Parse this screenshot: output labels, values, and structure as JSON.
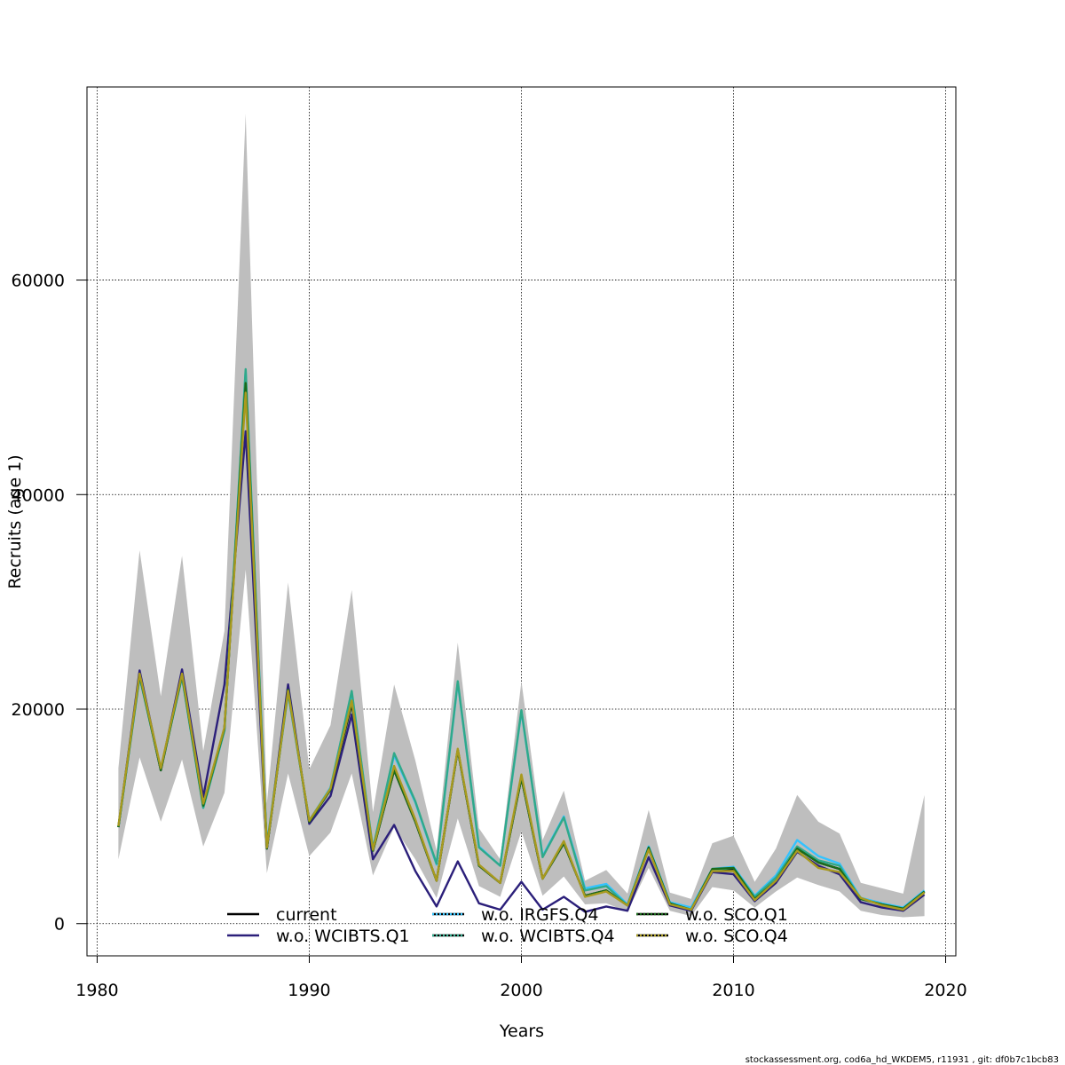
{
  "chart_data": {
    "type": "line",
    "xlabel": "Years",
    "ylabel": "Recruits (age 1)",
    "xlim": [
      1980,
      2020
    ],
    "ylim": [
      -6000,
      78000
    ],
    "xticks": [
      "1980",
      "1990",
      "2000",
      "2010",
      "2020"
    ],
    "yticks": [
      "0",
      "20000",
      "40000",
      "60000"
    ],
    "grid": true,
    "legend_position": "bottom-center",
    "footer": "stockassessment.org, cod6a_hd_WKDEM5, r11931 , git: df0b7c1bcb83",
    "x": [
      1981,
      1982,
      1983,
      1984,
      1985,
      1986,
      1987,
      1988,
      1989,
      1990,
      1991,
      1992,
      1993,
      1994,
      1995,
      1996,
      1997,
      1998,
      1999,
      2000,
      2001,
      2002,
      2003,
      2004,
      2005,
      2006,
      2007,
      2008,
      2009,
      2010,
      2011,
      2012,
      2013,
      2014,
      2015,
      2016,
      2017,
      2018,
      2019
    ],
    "band": {
      "color": "#bebebe",
      "lower": [
        6000,
        15500,
        9500,
        15300,
        7200,
        12200,
        33000,
        4700,
        14000,
        6300,
        8500,
        14000,
        4500,
        9000,
        6000,
        2400,
        9800,
        3500,
        2500,
        8600,
        2600,
        4400,
        1800,
        1900,
        1100,
        5200,
        1200,
        700,
        3400,
        3100,
        1500,
        3000,
        4300,
        3600,
        3000,
        1200,
        800,
        600,
        700
      ],
      "upper": [
        14500,
        34800,
        21200,
        34300,
        16100,
        27300,
        75500,
        11200,
        31800,
        14400,
        18500,
        31100,
        10400,
        22300,
        15200,
        6800,
        26200,
        8900,
        6000,
        22600,
        7800,
        12400,
        4000,
        5000,
        2800,
        10600,
        2900,
        2300,
        7500,
        8200,
        3900,
        7000,
        12000,
        9500,
        8400,
        3800,
        3300,
        2800,
        12000
      ]
    },
    "series": [
      {
        "name": "current",
        "color": "#000000",
        "dash": "solid",
        "values": [
          9000,
          23200,
          14300,
          23200,
          11000,
          18200,
          50200,
          7000,
          21800,
          9500,
          12500,
          20500,
          6800,
          14300,
          9500,
          4000,
          16200,
          5400,
          3800,
          13600,
          4200,
          7500,
          2600,
          3100,
          1700,
          7100,
          1900,
          1300,
          5000,
          5100,
          2300,
          4000,
          7000,
          5700,
          5100,
          2300,
          1800,
          1400,
          3000
        ]
      },
      {
        "name": "w.o. WCIBTS.Q1",
        "color": "#2b1f7a",
        "dash": "solid",
        "values": [
          9000,
          23600,
          14300,
          23700,
          11800,
          22300,
          45900,
          7000,
          22300,
          9300,
          11900,
          19500,
          6000,
          9200,
          4900,
          1600,
          5800,
          1900,
          1300,
          3900,
          1300,
          2500,
          1100,
          1600,
          1200,
          6200,
          1700,
          1200,
          4800,
          4600,
          2100,
          3800,
          6700,
          5400,
          4600,
          2000,
          1500,
          1200,
          2700
        ]
      },
      {
        "name": "w.o. IRGFS.Q4",
        "color": "#33c3ff",
        "dash": "dotted",
        "values": [
          9000,
          23000,
          14400,
          23000,
          10800,
          18000,
          51500,
          7300,
          21500,
          9600,
          12700,
          21500,
          7000,
          15700,
          11300,
          5500,
          22500,
          7200,
          5400,
          19800,
          6300,
          10000,
          3300,
          3700,
          1800,
          7200,
          2000,
          1500,
          5100,
          5300,
          2600,
          4500,
          7800,
          6300,
          5600,
          2400,
          1900,
          1500,
          3100
        ]
      },
      {
        "name": "w.o. WCIBTS.Q4",
        "color": "#2fa98a",
        "dash": "dotted",
        "values": [
          9000,
          23000,
          14400,
          23000,
          10800,
          18000,
          51700,
          7300,
          21500,
          9600,
          12600,
          21700,
          7000,
          15900,
          11400,
          5600,
          22600,
          7100,
          5400,
          19900,
          6200,
          9900,
          3100,
          3500,
          1700,
          7000,
          1900,
          1300,
          5000,
          5200,
          2500,
          4300,
          7200,
          5900,
          5400,
          2300,
          1800,
          1400,
          3000
        ]
      },
      {
        "name": "w.o. SCO.Q1",
        "color": "#1a6b1a",
        "dash": "dotted",
        "values": [
          9000,
          23200,
          14300,
          23200,
          11000,
          18200,
          50400,
          7000,
          21800,
          9500,
          12500,
          20700,
          6800,
          14300,
          9500,
          4000,
          16200,
          5400,
          3800,
          13600,
          4200,
          7500,
          2600,
          3100,
          1700,
          7100,
          1900,
          1300,
          5100,
          5200,
          2300,
          4000,
          7000,
          5700,
          5100,
          2300,
          1800,
          1400,
          3000
        ]
      },
      {
        "name": "w.o. SCO.Q4",
        "color": "#a89a1f",
        "dash": "dotted",
        "values": [
          9100,
          23300,
          14500,
          23300,
          11200,
          18300,
          49500,
          7100,
          21700,
          9600,
          12600,
          20800,
          6900,
          14700,
          9700,
          4000,
          16300,
          5500,
          3800,
          13900,
          4200,
          7700,
          2500,
          3000,
          1700,
          6900,
          1800,
          1300,
          4900,
          4900,
          2200,
          4000,
          6800,
          5200,
          4800,
          2400,
          1700,
          1300,
          2900
        ]
      }
    ]
  }
}
